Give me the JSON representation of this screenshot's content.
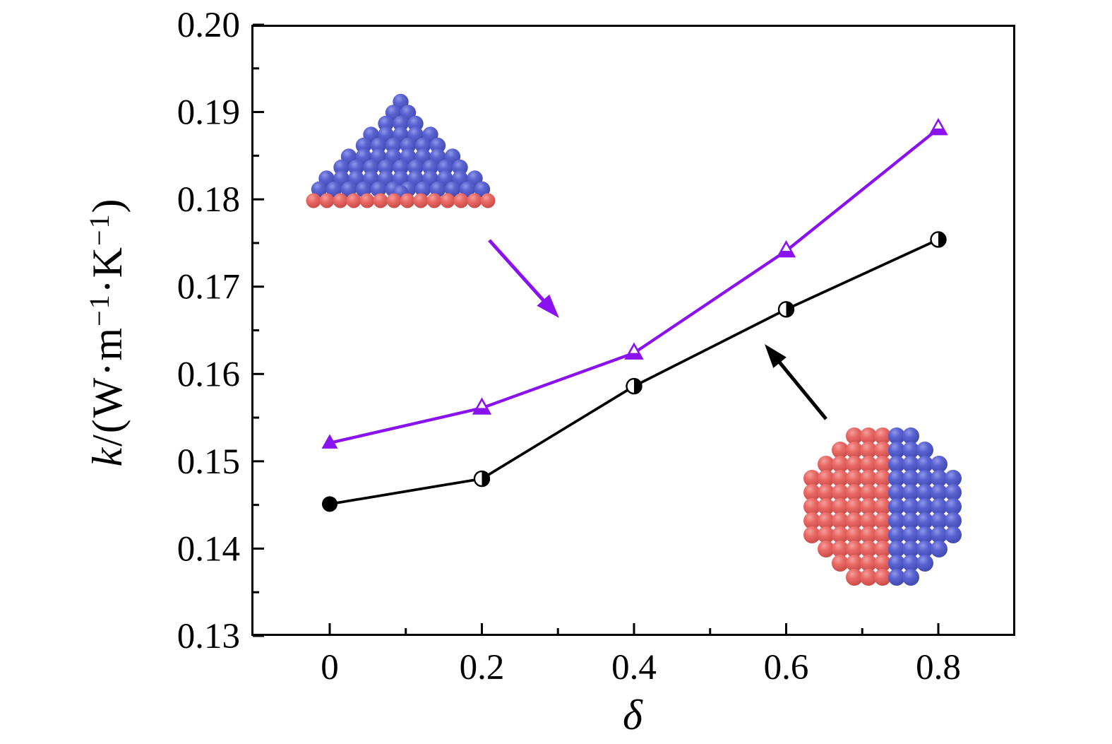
{
  "chart_data": {
    "type": "line",
    "x": [
      0,
      0.2,
      0.4,
      0.6,
      0.8
    ],
    "series": [
      {
        "name": "layered-structure-series",
        "color": "#8B12F0",
        "marker": "triangle-up",
        "first_marker_style": "filled",
        "other_marker_style": "bottom-half-filled",
        "values": [
          0.1521,
          0.1561,
          0.1624,
          0.1741,
          0.1881
        ]
      },
      {
        "name": "janus-sphere-series",
        "color": "#000000",
        "marker": "circle",
        "first_marker_style": "filled",
        "other_marker_style": "right-half-filled",
        "values": [
          0.1451,
          0.148,
          0.1586,
          0.1674,
          0.1754
        ]
      }
    ],
    "xlabel": "δ",
    "ylabel": "k/(W·m−1·K−1)",
    "ylabel_segments": [
      {
        "t": "k",
        "italic": true
      },
      {
        "t": "/(W·m"
      },
      {
        "t": "−1",
        "sup": true
      },
      {
        "t": "·K"
      },
      {
        "t": "−1",
        "sup": true
      },
      {
        "t": ")"
      }
    ],
    "xlim": [
      -0.103,
      0.902
    ],
    "ylim": [
      0.13,
      0.2
    ],
    "xticks": {
      "major": [
        0,
        0.2,
        0.4,
        0.6,
        0.8
      ],
      "labels": [
        "0",
        "0.2",
        "0.4",
        "0.6",
        "0.8"
      ],
      "minor": [
        0.1,
        0.3,
        0.5,
        0.7
      ]
    },
    "yticks": {
      "major": [
        0.13,
        0.14,
        0.15,
        0.16,
        0.17,
        0.18,
        0.19,
        0.2
      ],
      "labels": [
        "0.13",
        "0.14",
        "0.15",
        "0.16",
        "0.17",
        "0.18",
        "0.19",
        "0.20"
      ],
      "minor": [
        0.135,
        0.145,
        0.155,
        0.165,
        0.175,
        0.185,
        0.195
      ]
    },
    "grid": false,
    "legend": "none"
  },
  "illustrations": {
    "pyramid": {
      "description": "triangular pyramid cluster of blue spheres resting on a single row of red substrate spheres, one blue sphere embedded in the red row",
      "blue": "#5a63d2",
      "red": "#ea6a66"
    },
    "janus": {
      "description": "circular cluster of spheres on a square lattice, left half red, right half blue",
      "red": "#ea6a66",
      "blue": "#5a63d2"
    }
  },
  "annotations": {
    "pyramid_arrow": {
      "color": "#8B12F0",
      "direction": "points down-right from pyramid toward purple curve"
    },
    "janus_arrow": {
      "color": "#000000",
      "direction": "points up-left from janus sphere toward black curve"
    }
  }
}
